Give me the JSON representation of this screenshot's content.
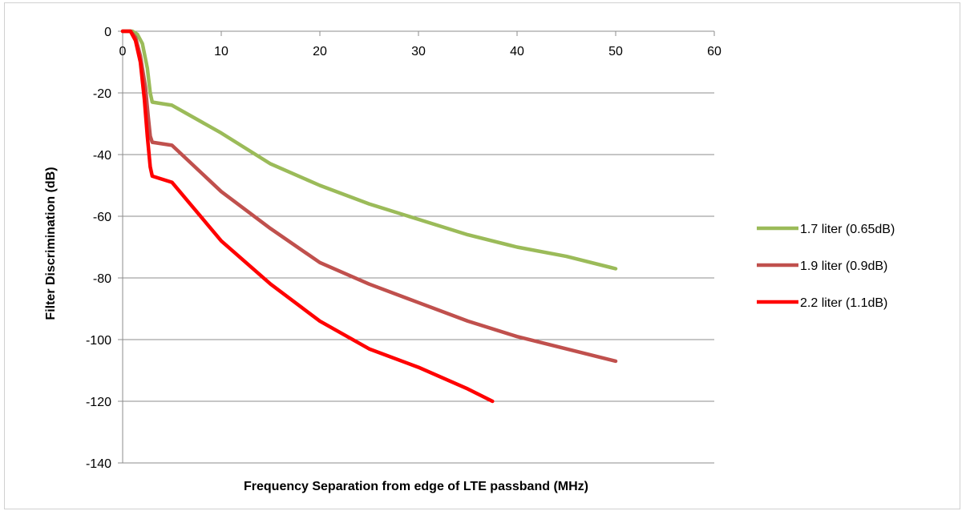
{
  "chart_data": {
    "type": "line",
    "title": "",
    "xlabel": "Frequency Separation from edge of LTE passband (MHz)",
    "ylabel": "Filter Discrimination (dB)",
    "xlim": [
      0,
      60
    ],
    "ylim": [
      -140,
      0
    ],
    "x_ticks": [
      0,
      10,
      20,
      30,
      40,
      50,
      60
    ],
    "y_ticks": [
      0,
      -20,
      -40,
      -60,
      -80,
      -100,
      -120,
      -140
    ],
    "x_tick_labels": [
      "0",
      "10",
      "20",
      "30",
      "40",
      "50",
      "60"
    ],
    "y_tick_labels": [
      "0",
      "-20",
      "-40",
      "-60",
      "-80",
      "-100",
      "-120",
      "-140"
    ],
    "grid": "horizontal",
    "legend_position": "right",
    "series": [
      {
        "name": "1.7 liter (0.65dB)",
        "color": "#9BBB59",
        "x": [
          0,
          1,
          1.5,
          2,
          2.5,
          2.8,
          3,
          5,
          10,
          15,
          20,
          25,
          30,
          35,
          40,
          45,
          50
        ],
        "y": [
          0,
          0,
          -1,
          -4,
          -12,
          -20,
          -23,
          -24,
          -33,
          -43,
          -50,
          -56,
          -61,
          -66,
          -70,
          -73,
          -77
        ]
      },
      {
        "name": "1.9 liter (0.9dB)",
        "color": "#C0504D",
        "x": [
          0,
          0.8,
          1.3,
          1.8,
          2.3,
          2.6,
          2.8,
          3,
          5,
          10,
          15,
          20,
          25,
          30,
          35,
          40,
          45,
          50
        ],
        "y": [
          0,
          0,
          -2,
          -8,
          -18,
          -28,
          -34,
          -36,
          -37,
          -52,
          -64,
          -75,
          -82,
          -88,
          -94,
          -99,
          -103,
          -107
        ]
      },
      {
        "name": "2.2 liter (1.1dB)",
        "color": "#FF0000",
        "x": [
          0,
          0.8,
          1.3,
          1.8,
          2.2,
          2.5,
          2.8,
          3,
          5,
          10,
          15,
          20,
          25,
          30,
          35,
          37.5
        ],
        "y": [
          0,
          0,
          -3,
          -10,
          -22,
          -34,
          -44,
          -47,
          -49,
          -68,
          -82,
          -94,
          -103,
          -109,
          -116,
          -120
        ]
      }
    ]
  }
}
